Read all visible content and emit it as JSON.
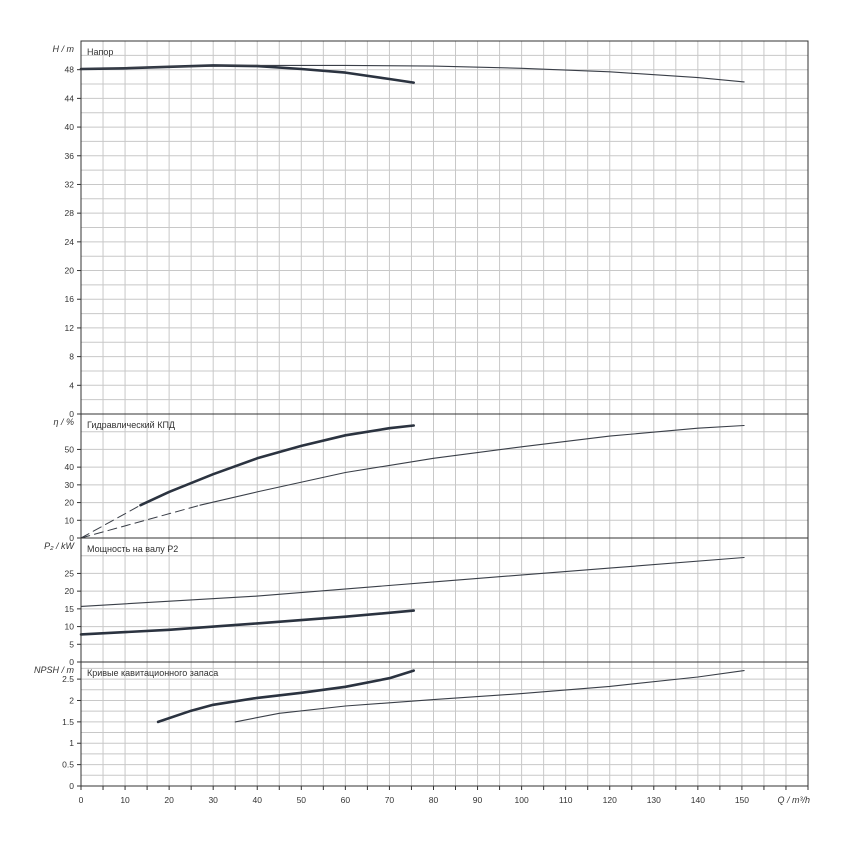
{
  "chart_data": {
    "type": "line",
    "x_axis": {
      "label": "Q / m³/h",
      "min": 0,
      "max": 165,
      "grid_step": 5,
      "ticks": [
        0,
        10,
        20,
        30,
        40,
        50,
        60,
        70,
        80,
        90,
        100,
        110,
        120,
        130,
        140,
        150
      ]
    },
    "panels": [
      {
        "id": "head",
        "title": "Напор",
        "ylabel": "H / m",
        "ylim": [
          0,
          52
        ],
        "yticks": [
          0,
          4,
          8,
          12,
          16,
          20,
          24,
          28,
          32,
          36,
          40,
          44,
          48
        ],
        "ygrid": [
          0,
          2,
          4,
          6,
          8,
          10,
          12,
          14,
          16,
          18,
          20,
          22,
          24,
          26,
          28,
          30,
          32,
          34,
          36,
          38,
          40,
          42,
          44,
          46,
          48,
          50,
          52
        ],
        "series": [
          {
            "style": "thick",
            "points": [
              [
                0,
                48.1
              ],
              [
                10,
                48.2
              ],
              [
                20,
                48.4
              ],
              [
                30,
                48.6
              ],
              [
                40,
                48.5
              ],
              [
                50,
                48.1
              ],
              [
                60,
                47.6
              ],
              [
                70,
                46.7
              ],
              [
                75.5,
                46.2
              ]
            ]
          },
          {
            "style": "thin",
            "points": [
              [
                0,
                48.1
              ],
              [
                20,
                48.4
              ],
              [
                40,
                48.6
              ],
              [
                60,
                48.6
              ],
              [
                80,
                48.5
              ],
              [
                100,
                48.2
              ],
              [
                120,
                47.7
              ],
              [
                140,
                46.9
              ],
              [
                150.5,
                46.3
              ]
            ]
          }
        ]
      },
      {
        "id": "efficiency",
        "title": "Гидравлический КПД",
        "ylabel": "η / %",
        "ylim": [
          0,
          70
        ],
        "yticks": [
          0,
          10,
          20,
          30,
          40,
          50
        ],
        "ygrid": [
          0,
          10,
          20,
          30,
          40,
          50,
          60,
          70
        ],
        "series": [
          {
            "style": "dashed",
            "points": [
              [
                0,
                0
              ],
              [
                13.5,
                18.5
              ]
            ]
          },
          {
            "style": "thick",
            "points": [
              [
                13.5,
                18.5
              ],
              [
                20,
                26
              ],
              [
                30,
                36
              ],
              [
                40,
                45
              ],
              [
                50,
                52
              ],
              [
                60,
                58
              ],
              [
                70,
                62
              ],
              [
                75.5,
                63.5
              ]
            ]
          },
          {
            "style": "dashed",
            "points": [
              [
                0,
                0
              ],
              [
                27,
                18.5
              ]
            ]
          },
          {
            "style": "thin",
            "points": [
              [
                27,
                18.5
              ],
              [
                40,
                26
              ],
              [
                60,
                37
              ],
              [
                80,
                45
              ],
              [
                100,
                51.5
              ],
              [
                120,
                57.5
              ],
              [
                140,
                62
              ],
              [
                150.5,
                63.5
              ]
            ]
          }
        ]
      },
      {
        "id": "power",
        "title": "Мощность на валу P2",
        "ylabel": "P₂ / kW",
        "ylim": [
          0,
          35
        ],
        "yticks": [
          0,
          5,
          10,
          15,
          20,
          25
        ],
        "ygrid": [
          0,
          5,
          10,
          15,
          20,
          25,
          30,
          35
        ],
        "series": [
          {
            "style": "thick",
            "points": [
              [
                0,
                7.8
              ],
              [
                20,
                9.1
              ],
              [
                40,
                10.9
              ],
              [
                60,
                12.8
              ],
              [
                75.5,
                14.5
              ]
            ]
          },
          {
            "style": "thin",
            "points": [
              [
                0,
                15.7
              ],
              [
                40,
                18.6
              ],
              [
                80,
                22.6
              ],
              [
                120,
                26.5
              ],
              [
                150.5,
                29.5
              ]
            ]
          }
        ]
      },
      {
        "id": "npsh",
        "title": "Кривые кавитационного запаса",
        "ylabel": "NPSH / m",
        "ylim": [
          0,
          2.9
        ],
        "yticks": [
          0,
          0.5,
          1,
          1.5,
          2,
          2.5
        ],
        "ygrid": [
          0,
          0.25,
          0.5,
          0.75,
          1,
          1.25,
          1.5,
          1.75,
          2,
          2.25,
          2.5,
          2.75
        ],
        "series": [
          {
            "style": "thick",
            "points": [
              [
                17.5,
                1.5
              ],
              [
                25,
                1.76
              ],
              [
                30,
                1.9
              ],
              [
                40,
                2.06
              ],
              [
                50,
                2.18
              ],
              [
                60,
                2.32
              ],
              [
                70,
                2.52
              ],
              [
                75.5,
                2.7
              ]
            ]
          },
          {
            "style": "thin",
            "points": [
              [
                35,
                1.5
              ],
              [
                45,
                1.7
              ],
              [
                60,
                1.87
              ],
              [
                80,
                2.02
              ],
              [
                100,
                2.16
              ],
              [
                120,
                2.33
              ],
              [
                140,
                2.55
              ],
              [
                150.5,
                2.7
              ]
            ]
          }
        ]
      }
    ]
  }
}
